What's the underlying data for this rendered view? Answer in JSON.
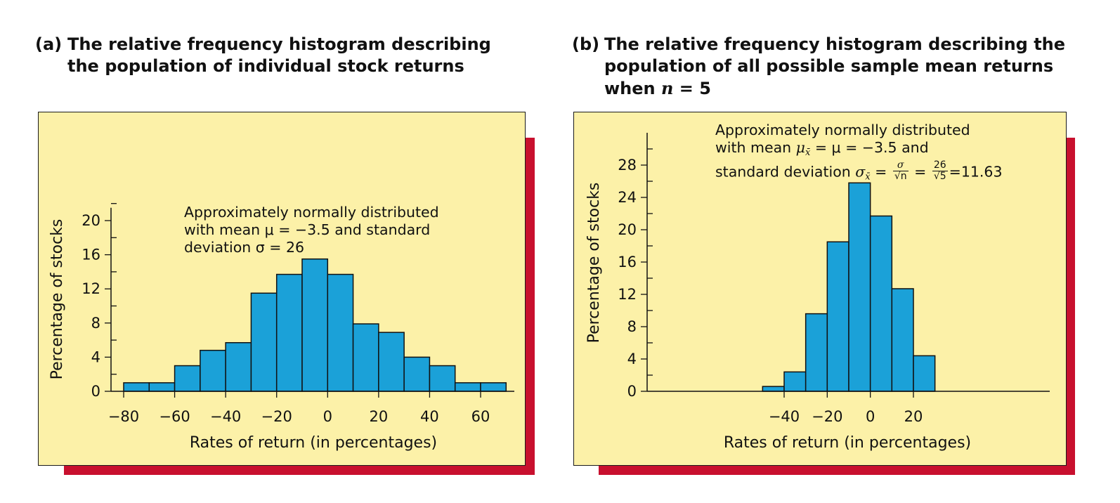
{
  "panel_a": {
    "letter": "(a)",
    "title_lines": [
      "The relative frequency histogram describing",
      "the population of individual stock returns"
    ],
    "annotation_lines": [
      "Approximately normally distributed",
      "with mean μ = −3.5 and standard",
      "deviation σ = 26"
    ]
  },
  "panel_b": {
    "letter": "(b)",
    "title_lines": [
      "The relative frequency histogram describing the",
      "population of all possible sample mean returns"
    ],
    "title_line3_prefix": "when ",
    "title_line3_var": "n",
    "title_line3_suffix": " = 5",
    "annotation": {
      "line1": "Approximately normally distributed",
      "line2_prefix": "with mean ",
      "line2_mu": "μ",
      "line2_sub": "x̄",
      "line2_rest": " = μ = −3.5 and",
      "line3_prefix": "standard deviation ",
      "line3_sigma": "σ",
      "line3_sub": "x̄",
      "eq": " = ",
      "frac1_num": "σ",
      "frac1_den": "√n",
      "frac2_num": "26",
      "frac2_den": "√5",
      "result": "=11.63"
    }
  },
  "chart_data": [
    {
      "type": "bar",
      "histogram": true,
      "bin_edges": [
        -80,
        -70,
        -60,
        -50,
        -40,
        -30,
        -20,
        -10,
        0,
        10,
        20,
        30,
        40,
        50,
        60,
        70
      ],
      "values": [
        1,
        1,
        3,
        4.8,
        5.7,
        11.5,
        13.7,
        15.5,
        13.7,
        7.9,
        6.9,
        4,
        3,
        1,
        1
      ],
      "xlabel": "Rates of return (in percentages)",
      "ylabel": "Percentage of stocks",
      "x_ticks": [
        -80,
        -60,
        -40,
        -20,
        0,
        20,
        40,
        60
      ],
      "x_tick_labels": [
        "−80",
        "−60",
        "−40",
        "−20",
        "0",
        "20",
        "40",
        "60"
      ],
      "y_ticks": [
        0,
        4,
        8,
        12,
        16,
        20
      ],
      "xlim": [
        -80,
        74
      ],
      "ylim": [
        0,
        21.5
      ],
      "bar_color": "#1ba1d8",
      "background": "#fcf1a8"
    },
    {
      "type": "bar",
      "histogram": true,
      "bin_edges": [
        -50,
        -40,
        -30,
        -20,
        -10,
        0,
        10,
        20,
        30
      ],
      "values": [
        0.6,
        2.4,
        9.6,
        18.5,
        25.8,
        21.7,
        12.7,
        4.4
      ],
      "xlabel": "Rates of return (in percentages)",
      "ylabel": "Percentage of stocks",
      "x_ticks": [
        -40,
        -20,
        0,
        20
      ],
      "x_tick_labels": [
        "−40",
        "−20",
        "0",
        "20"
      ],
      "y_ticks": [
        0,
        4,
        8,
        12,
        16,
        20,
        24,
        28
      ],
      "xlim": [
        -105,
        83
      ],
      "ylim": [
        0,
        32
      ],
      "bar_color": "#1ba1d8",
      "background": "#fcf1a8"
    }
  ]
}
